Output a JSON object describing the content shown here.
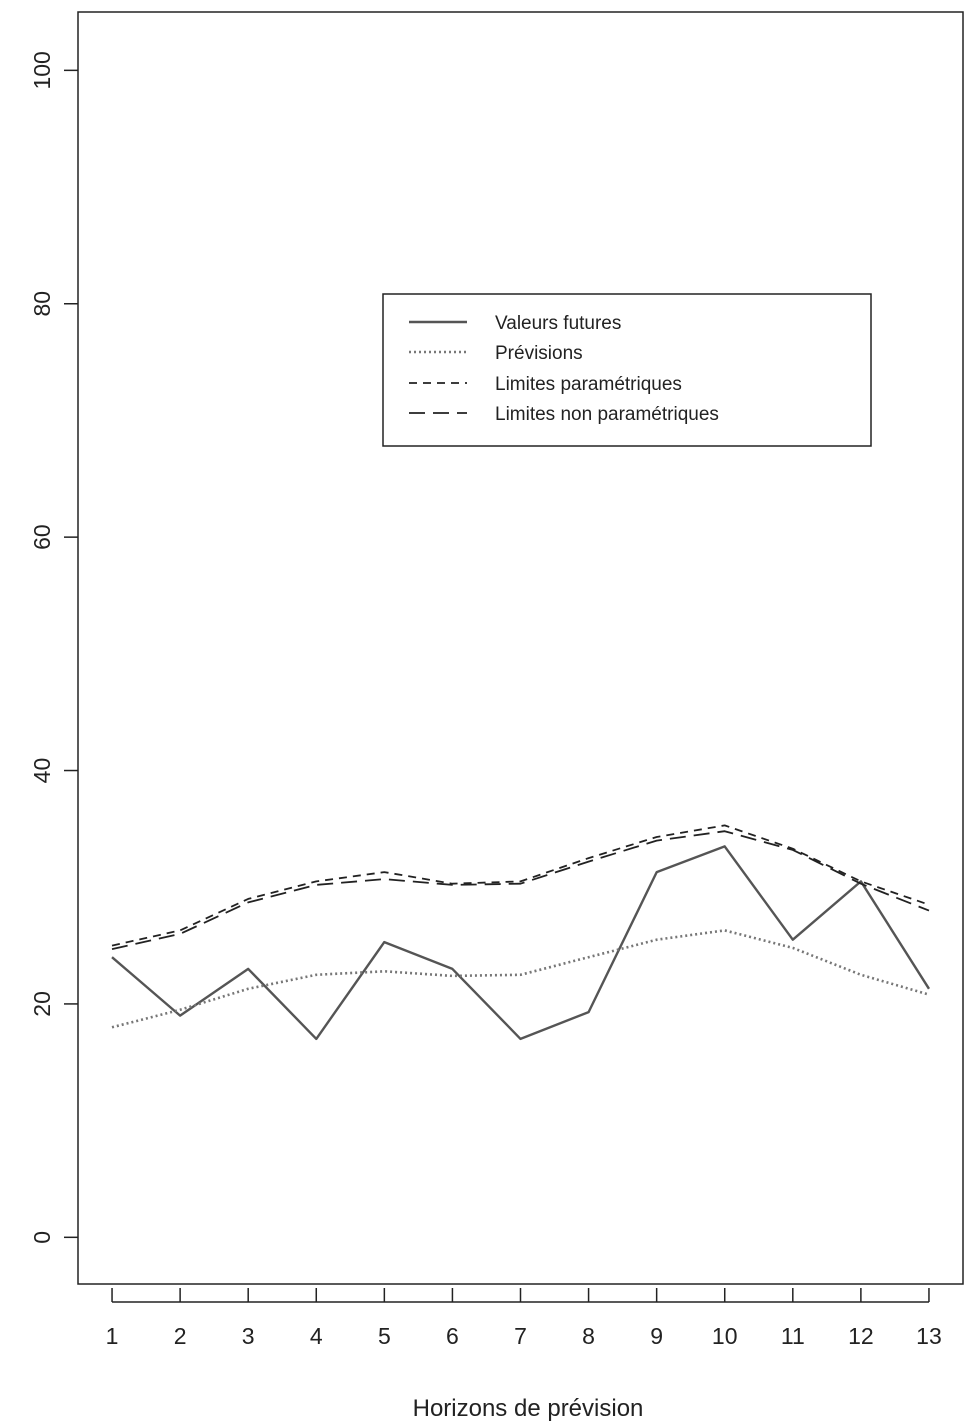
{
  "chart_data": {
    "type": "line",
    "xlabel": "Horizons de prévision",
    "ylabel": "",
    "x": [
      1,
      2,
      3,
      4,
      5,
      6,
      7,
      8,
      9,
      10,
      11,
      12,
      13
    ],
    "xlim": [
      0.5,
      13.5
    ],
    "ylim": [
      -4,
      105
    ],
    "yticks": [
      0,
      20,
      40,
      60,
      80,
      100
    ],
    "grid": false,
    "legend_position": "upper-right",
    "series": [
      {
        "name": "Valeurs futures",
        "style": "solid",
        "color": "#555555",
        "values": [
          24.0,
          19.0,
          23.0,
          17.0,
          25.3,
          23.0,
          17.0,
          19.3,
          31.3,
          33.5,
          25.5,
          30.5,
          21.3
        ]
      },
      {
        "name": "Prévisions",
        "style": "dotted",
        "color": "#777777",
        "values": [
          18.0,
          19.5,
          21.3,
          22.5,
          22.8,
          22.4,
          22.5,
          24.0,
          25.5,
          26.3,
          24.8,
          22.5,
          20.8
        ]
      },
      {
        "name": "Limites paramétriques",
        "style": "short-dash",
        "color": "#222222",
        "values": [
          25.0,
          26.3,
          29.0,
          30.5,
          31.3,
          30.3,
          30.5,
          32.5,
          34.3,
          35.3,
          33.3,
          30.5,
          28.5
        ]
      },
      {
        "name": "Limites non paramétriques",
        "style": "long-dash",
        "color": "#222222",
        "values": [
          24.7,
          26.0,
          28.7,
          30.2,
          30.7,
          30.2,
          30.3,
          32.2,
          34.0,
          34.8,
          33.2,
          30.3,
          28.0
        ]
      }
    ]
  }
}
